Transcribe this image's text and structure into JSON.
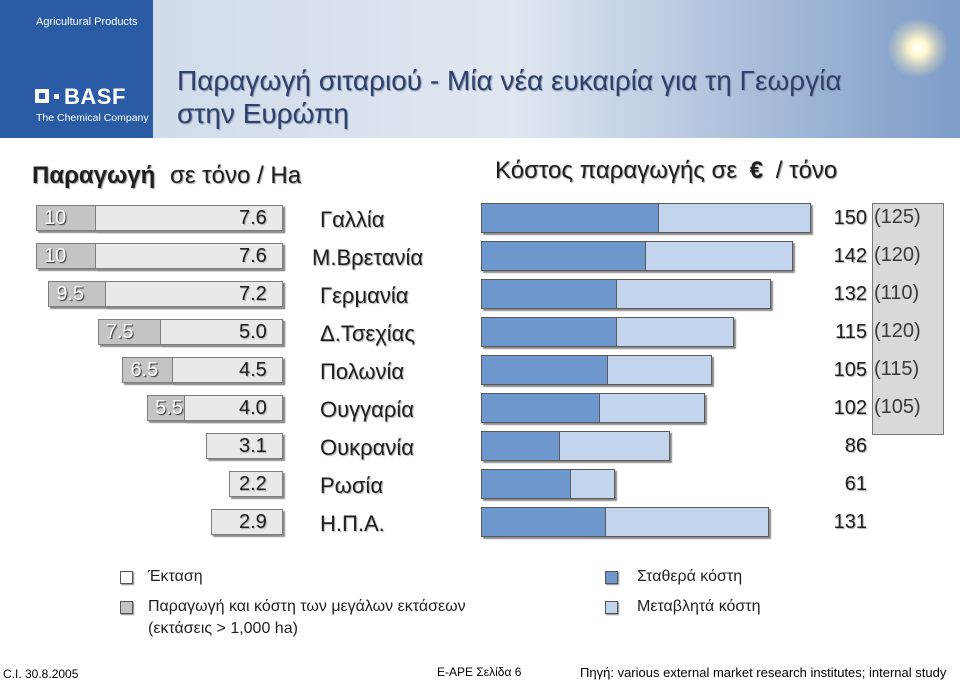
{
  "brand": {
    "top_text": "Agricultural Products",
    "wordmark": "BASF",
    "bottom_text": "The Chemical Company",
    "color": "#2a5ca6"
  },
  "title": "Παραγωγή σιταριού - Μία νέα ευκαιρία για τη Γεωργία στην Ευρώπη",
  "left_heading": {
    "bold": "Παραγωγή",
    "rest": "σε τόνο / Ha"
  },
  "right_heading": {
    "main": "Κόστος παραγωγής σε",
    "symbol": "€",
    "rest": "/ τόνο"
  },
  "chart_data": {
    "type": "bar",
    "categories": [
      "Γαλλία",
      "Μ.Βρετανία",
      "Γερμανία",
      "Δ.Τσεχίας",
      "Πολωνία",
      "Ουγγαρία",
      "Ουκρανία",
      "Ρωσία",
      "Η.Π.Α."
    ],
    "large_farm_yield": [
      10,
      10,
      9.5,
      7.5,
      6.5,
      5.5,
      null,
      null,
      null
    ],
    "large_farm_yield_labels": [
      "10",
      "10",
      "9.5",
      "7.5",
      "6.5",
      "5.5",
      "",
      "",
      ""
    ],
    "area_yield": [
      7.6,
      7.6,
      7.2,
      5.0,
      4.5,
      4.0,
      3.1,
      2.2,
      2.9
    ],
    "area_yield_labels": [
      "7.6",
      "7.6",
      "7.2",
      "5.0",
      "4.5",
      "4.0",
      "3.1",
      "2.2",
      "2.9"
    ],
    "cost_total": [
      150,
      142,
      132,
      115,
      105,
      102,
      86,
      61,
      131
    ],
    "cost_fixed": [
      80,
      74,
      61,
      61,
      57,
      53,
      35,
      40,
      56
    ],
    "cost_total_labels": [
      "150",
      "142",
      "132",
      "115",
      "105",
      "102",
      "86",
      "61",
      "131"
    ],
    "cost_large_farms_labels": [
      "(125)",
      "(120)",
      "(110)",
      "(120)",
      "(115)",
      "(105)",
      "",
      "",
      ""
    ],
    "colors": {
      "fixed": "#6e97cd",
      "variable": "#c3d5ec",
      "area": "#e9e9e9",
      "large_farm": "#c4c4c4"
    }
  },
  "legend": {
    "area": "Έκταση",
    "large_line1": "Παραγωγή και κόστη των μεγάλων εκτάσεων",
    "large_line2": "(εκτάσεις > 1,000 ha)",
    "fixed": "Σταθερά κόστη",
    "variable": "Μεταβλητά κόστη"
  },
  "footer": {
    "left": "C.I. 30.8.2005",
    "center": "E-APE Σελίδα 6",
    "right": "Πηγή: various external market research institutes; internal study"
  }
}
